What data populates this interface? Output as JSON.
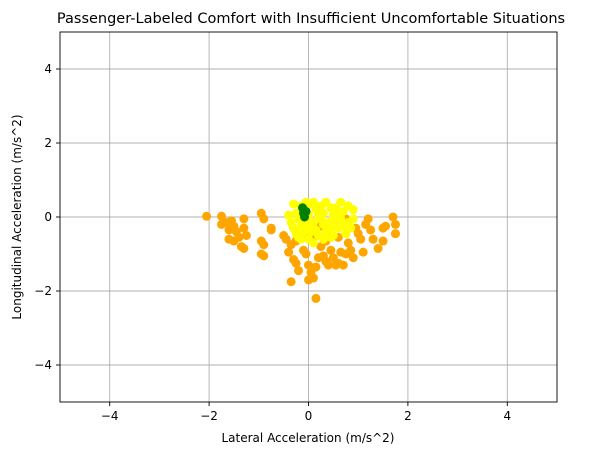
{
  "chart_data": {
    "type": "scatter",
    "title": "Passenger-Labeled Comfort with Insufficient Uncomfortable Situations",
    "xlabel": "Lateral Acceleration (m/s^2)",
    "ylabel": "Longitudinal Acceleration (m/s^2)",
    "xlim": [
      -5,
      5
    ],
    "ylim": [
      -5,
      5
    ],
    "xticks": [
      -4,
      -2,
      0,
      2,
      4
    ],
    "yticks": [
      -4,
      -2,
      0,
      2,
      4
    ],
    "xtick_labels": [
      "−4",
      "−2",
      "0",
      "2",
      "4"
    ],
    "ytick_labels": [
      "−4",
      "−2",
      "0",
      "2",
      "4"
    ],
    "grid": true,
    "series": [
      {
        "color": "#ffa500",
        "points": [
          [
            -2.05,
            0.02
          ],
          [
            -1.75,
            0.02
          ],
          [
            -1.75,
            -0.2
          ],
          [
            -1.65,
            -0.15
          ],
          [
            -1.6,
            -0.35
          ],
          [
            -1.55,
            -0.1
          ],
          [
            -1.5,
            -0.25
          ],
          [
            -1.45,
            -0.4
          ],
          [
            -1.6,
            -0.6
          ],
          [
            -1.5,
            -0.65
          ],
          [
            -1.4,
            -0.55
          ],
          [
            -1.35,
            -0.8
          ],
          [
            -1.3,
            -0.05
          ],
          [
            -1.3,
            -0.3
          ],
          [
            -1.25,
            -0.5
          ],
          [
            -1.3,
            -0.85
          ],
          [
            -0.95,
            0.1
          ],
          [
            -0.9,
            -0.05
          ],
          [
            -0.95,
            -0.65
          ],
          [
            -0.9,
            -0.75
          ],
          [
            -0.95,
            -1.0
          ],
          [
            -0.9,
            -1.05
          ],
          [
            -0.75,
            -0.3
          ],
          [
            -0.75,
            -0.35
          ],
          [
            -0.5,
            -0.5
          ],
          [
            -0.45,
            -0.6
          ],
          [
            -0.4,
            -0.95
          ],
          [
            -0.35,
            -0.75
          ],
          [
            -0.3,
            -0.3
          ],
          [
            -0.25,
            -0.65
          ],
          [
            -0.3,
            -1.15
          ],
          [
            -0.25,
            -1.25
          ],
          [
            -0.2,
            -1.45
          ],
          [
            -0.35,
            -1.75
          ],
          [
            -0.1,
            -0.9
          ],
          [
            -0.05,
            -1.0
          ],
          [
            0.0,
            -1.3
          ],
          [
            0.05,
            -1.5
          ],
          [
            0.0,
            -1.7
          ],
          [
            0.1,
            -1.65
          ],
          [
            0.15,
            -1.35
          ],
          [
            0.2,
            -1.1
          ],
          [
            0.25,
            -0.8
          ],
          [
            0.3,
            -1.05
          ],
          [
            0.35,
            -1.2
          ],
          [
            0.4,
            -1.3
          ],
          [
            0.35,
            -0.65
          ],
          [
            0.45,
            -0.9
          ],
          [
            0.5,
            -1.1
          ],
          [
            0.55,
            -1.3
          ],
          [
            0.6,
            -1.25
          ],
          [
            0.65,
            -0.95
          ],
          [
            0.7,
            -1.3
          ],
          [
            0.75,
            -1.0
          ],
          [
            0.8,
            -0.7
          ],
          [
            0.85,
            -0.9
          ],
          [
            0.9,
            -1.1
          ],
          [
            0.95,
            -0.3
          ],
          [
            1.0,
            -0.45
          ],
          [
            1.05,
            -0.6
          ],
          [
            1.1,
            -0.95
          ],
          [
            1.15,
            -0.2
          ],
          [
            1.2,
            -0.05
          ],
          [
            1.25,
            -0.35
          ],
          [
            1.3,
            -0.6
          ],
          [
            1.4,
            -0.85
          ],
          [
            1.5,
            -0.65
          ],
          [
            1.5,
            -0.3
          ],
          [
            1.55,
            -0.25
          ],
          [
            1.7,
            0.0
          ],
          [
            1.75,
            -0.2
          ],
          [
            1.75,
            -0.45
          ],
          [
            0.75,
            -0.05
          ],
          [
            0.15,
            -2.2
          ],
          [
            0.6,
            -0.55
          ],
          [
            -0.05,
            -0.45
          ],
          [
            0.1,
            -0.55
          ],
          [
            0.25,
            -0.25
          ]
        ]
      },
      {
        "color": "#ffff00",
        "points": [
          [
            -0.3,
            0.35
          ],
          [
            -0.25,
            0.1
          ],
          [
            -0.2,
            -0.05
          ],
          [
            -0.15,
            0.3
          ],
          [
            -0.1,
            0.2
          ],
          [
            -0.05,
            0.4
          ],
          [
            0.0,
            0.05
          ],
          [
            0.05,
            0.35
          ],
          [
            0.1,
            0.4
          ],
          [
            0.15,
            0.2
          ],
          [
            0.2,
            0.05
          ],
          [
            0.25,
            0.3
          ],
          [
            0.3,
            0.1
          ],
          [
            0.35,
            0.4
          ],
          [
            0.45,
            0.25
          ],
          [
            0.5,
            0.05
          ],
          [
            0.55,
            0.25
          ],
          [
            0.65,
            0.4
          ],
          [
            0.7,
            0.15
          ],
          [
            0.8,
            0.3
          ],
          [
            0.9,
            0.2
          ],
          [
            -0.35,
            -0.15
          ],
          [
            -0.3,
            -0.3
          ],
          [
            -0.25,
            -0.45
          ],
          [
            -0.2,
            -0.55
          ],
          [
            -0.15,
            -0.25
          ],
          [
            -0.1,
            -0.4
          ],
          [
            -0.05,
            -0.1
          ],
          [
            0.0,
            -0.25
          ],
          [
            0.05,
            -0.4
          ],
          [
            0.1,
            -0.15
          ],
          [
            0.15,
            -0.35
          ],
          [
            0.2,
            -0.5
          ],
          [
            0.25,
            -0.05
          ],
          [
            0.3,
            -0.2
          ],
          [
            0.35,
            -0.4
          ],
          [
            0.4,
            -0.15
          ],
          [
            0.45,
            -0.3
          ],
          [
            0.5,
            -0.5
          ],
          [
            0.55,
            -0.1
          ],
          [
            0.6,
            -0.3
          ],
          [
            0.65,
            -0.05
          ],
          [
            0.7,
            -0.25
          ],
          [
            0.75,
            -0.45
          ],
          [
            0.8,
            -0.15
          ],
          [
            0.85,
            -0.3
          ],
          [
            0.9,
            -0.05
          ],
          [
            -0.4,
            0.05
          ],
          [
            -0.15,
            -0.6
          ],
          [
            0.0,
            -0.6
          ],
          [
            0.1,
            -0.7
          ],
          [
            0.3,
            -0.6
          ],
          [
            0.45,
            -0.55
          ],
          [
            0.2,
            0.25
          ],
          [
            0.6,
            0.1
          ]
        ]
      },
      {
        "color": "#008000",
        "points": [
          [
            -0.1,
            0.2
          ],
          [
            -0.1,
            0.1
          ],
          [
            -0.08,
            0.0
          ],
          [
            -0.05,
            0.15
          ],
          [
            -0.12,
            0.25
          ]
        ]
      }
    ]
  }
}
